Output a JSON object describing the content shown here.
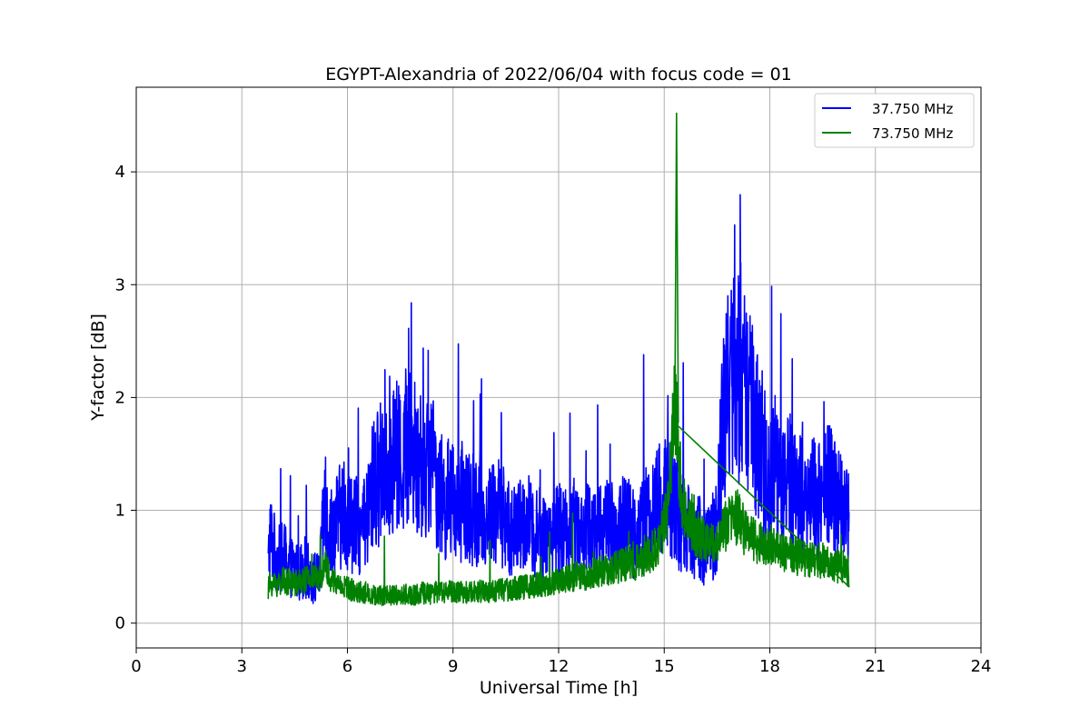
{
  "chart_data": {
    "type": "line",
    "title": "EGYPT-Alexandria of 2022/06/04 with focus code = 01",
    "xlabel": "Universal Time [h]",
    "ylabel": "Y-factor [dB]",
    "xlim": [
      0,
      24
    ],
    "ylim": [
      -0.22,
      4.75
    ],
    "xticks": [
      0,
      3,
      6,
      9,
      12,
      15,
      18,
      21,
      24
    ],
    "yticks": [
      0,
      1,
      2,
      3,
      4
    ],
    "grid": true,
    "legend_position": "top-right",
    "series": [
      {
        "name": "37.750 MHz",
        "color": "#0000ff",
        "x": [
          3.75,
          3.8,
          4.0,
          4.2,
          4.4,
          4.6,
          4.8,
          5.0,
          5.2,
          5.35,
          5.5,
          5.7,
          5.9,
          6.1,
          6.3,
          6.5,
          6.7,
          6.9,
          7.1,
          7.3,
          7.5,
          7.7,
          7.9,
          8.1,
          8.3,
          8.5,
          8.7,
          8.9,
          9.1,
          9.3,
          9.5,
          9.7,
          9.9,
          10.1,
          10.3,
          10.5,
          10.7,
          10.9,
          11.1,
          11.3,
          11.5,
          11.7,
          11.9,
          12.1,
          12.3,
          12.5,
          12.7,
          12.9,
          13.1,
          13.3,
          13.5,
          13.7,
          13.9,
          14.1,
          14.3,
          14.5,
          14.7,
          14.9,
          15.1,
          15.3,
          15.5,
          15.7,
          15.9,
          16.1,
          16.3,
          16.5,
          16.7,
          16.9,
          17.1,
          17.3,
          17.5,
          17.7,
          17.9,
          18.1,
          18.3,
          18.5,
          18.7,
          18.9,
          19.1,
          19.3,
          19.5,
          19.7,
          19.9,
          20.1,
          20.25
        ],
        "y": [
          0.5,
          0.8,
          0.55,
          0.6,
          0.5,
          0.45,
          0.5,
          0.4,
          0.4,
          1.0,
          0.8,
          0.9,
          1.0,
          0.9,
          0.85,
          0.8,
          1.2,
          1.3,
          1.5,
          1.5,
          1.4,
          1.6,
          1.5,
          1.4,
          1.4,
          1.3,
          1.1,
          1.1,
          1.0,
          1.1,
          1.0,
          1.0,
          0.9,
          1.0,
          1.0,
          0.9,
          0.8,
          0.85,
          0.9,
          0.8,
          0.8,
          0.75,
          0.8,
          0.85,
          0.8,
          0.9,
          0.8,
          0.85,
          0.8,
          0.9,
          0.85,
          0.8,
          0.9,
          0.8,
          0.85,
          0.9,
          0.95,
          1.1,
          1.2,
          1.0,
          0.9,
          0.8,
          0.8,
          0.7,
          0.7,
          0.9,
          1.9,
          2.1,
          2.3,
          2.0,
          1.8,
          1.6,
          1.4,
          1.3,
          1.2,
          1.3,
          1.2,
          1.2,
          1.15,
          1.1,
          1.1,
          1.2,
          1.1,
          1.05,
          0.9
        ]
      },
      {
        "name": "73.750 MHz",
        "color": "#008000",
        "x": [
          3.75,
          3.8,
          4.0,
          4.2,
          4.4,
          4.6,
          4.8,
          5.0,
          5.2,
          5.35,
          5.5,
          5.7,
          5.9,
          6.1,
          6.3,
          6.5,
          6.7,
          6.9,
          7.1,
          7.3,
          7.5,
          7.7,
          7.9,
          8.1,
          8.3,
          8.5,
          8.7,
          8.9,
          9.1,
          9.3,
          9.5,
          9.7,
          9.9,
          10.1,
          10.3,
          10.5,
          10.7,
          10.9,
          11.1,
          11.3,
          11.5,
          11.7,
          11.9,
          12.1,
          12.3,
          12.5,
          12.7,
          12.9,
          13.1,
          13.3,
          13.5,
          13.7,
          13.9,
          14.1,
          14.3,
          14.5,
          14.7,
          14.9,
          15.1,
          15.3,
          15.5,
          15.7,
          15.9,
          16.1,
          16.3,
          16.5,
          16.7,
          16.9,
          17.1,
          17.3,
          17.5,
          17.7,
          17.9,
          18.1,
          18.3,
          18.5,
          18.7,
          18.9,
          19.1,
          19.3,
          19.5,
          19.7,
          19.9,
          20.1,
          20.25
        ],
        "y": [
          0.3,
          0.35,
          0.35,
          0.38,
          0.35,
          0.36,
          0.38,
          0.4,
          0.38,
          0.55,
          0.4,
          0.35,
          0.32,
          0.3,
          0.28,
          0.27,
          0.25,
          0.24,
          0.25,
          0.24,
          0.25,
          0.26,
          0.25,
          0.27,
          0.26,
          0.27,
          0.28,
          0.28,
          0.27,
          0.28,
          0.27,
          0.28,
          0.28,
          0.29,
          0.3,
          0.3,
          0.3,
          0.32,
          0.32,
          0.33,
          0.35,
          0.35,
          0.36,
          0.38,
          0.4,
          0.42,
          0.42,
          0.42,
          0.45,
          0.48,
          0.48,
          0.5,
          0.52,
          0.52,
          0.55,
          0.6,
          0.65,
          0.75,
          1.0,
          2.0,
          1.1,
          0.9,
          0.8,
          0.75,
          0.7,
          0.7,
          0.85,
          0.9,
          0.95,
          0.8,
          0.75,
          0.7,
          0.7,
          0.72,
          0.65,
          0.6,
          0.6,
          0.58,
          0.55,
          0.55,
          0.55,
          0.55,
          0.5,
          0.5,
          0.45
        ]
      }
    ],
    "annotations": [
      {
        "series": "73.750 MHz",
        "x": 15.35,
        "y": 4.52,
        "label": ""
      }
    ]
  }
}
